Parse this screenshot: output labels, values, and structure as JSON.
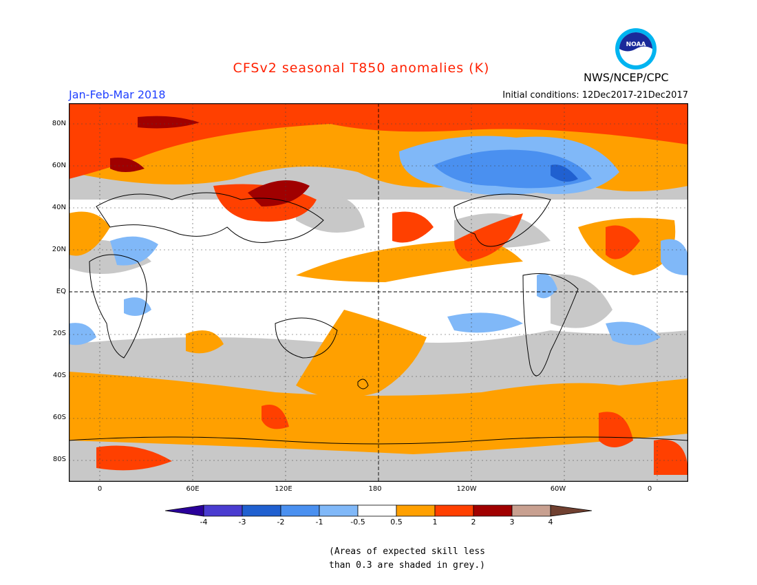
{
  "header": {
    "title": "CFSv2 seasonal T850 anomalies (K)",
    "period": "Jan-Feb-Mar 2018",
    "initial_conditions": "Initial conditions: 12Dec2017-21Dec2017",
    "agency": "NWS/NCEP/CPC",
    "logo_text": "NOAA"
  },
  "map": {
    "lat_labels": [
      "80N",
      "60N",
      "40N",
      "20N",
      "EQ",
      "20S",
      "40S",
      "60S",
      "80S"
    ],
    "lon_labels": [
      "0",
      "60E",
      "120E",
      "180",
      "120W",
      "60W",
      "0"
    ]
  },
  "colorbar": {
    "labels": [
      "-4",
      "-3",
      "-2",
      "-1",
      "-0.5",
      "0.5",
      "1",
      "2",
      "3",
      "4"
    ],
    "colors": [
      "#2a009a",
      "#4a3cd0",
      "#2060d0",
      "#4a90f0",
      "#80b8f8",
      "#ffffff",
      "#ffa000",
      "#ff4000",
      "#a00000",
      "#c8a090",
      "#704030"
    ]
  },
  "note": {
    "line1": "(Areas of expected skill less",
    "line2": "than 0.3 are shaded in grey.)"
  },
  "colors": {
    "grey": "#c8c8c8",
    "orange": "#ffa000",
    "red": "#ff4000",
    "darkred": "#a00000",
    "lightblue": "#80b8f8",
    "blue": "#4a90f0",
    "midblue": "#2060d0"
  }
}
